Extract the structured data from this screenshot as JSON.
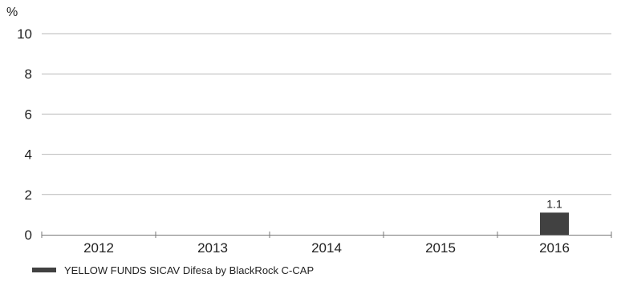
{
  "colors": {
    "bar": "#414141",
    "grid": "#b9b9b9",
    "axis": "#777777",
    "text": "#222222"
  },
  "chart_data": {
    "type": "bar",
    "title": "",
    "xlabel": "",
    "ylabel": "%",
    "categories": [
      "2012",
      "2013",
      "2014",
      "2015",
      "2016"
    ],
    "series": [
      {
        "name": "YELLOW FUNDS SICAV Difesa by BlackRock C-CAP",
        "values": [
          null,
          null,
          null,
          null,
          1.1
        ],
        "data_labels": [
          "",
          "",
          "",
          "",
          "1.1"
        ]
      }
    ],
    "ylim": [
      0,
      10
    ],
    "yticks": [
      0,
      2,
      4,
      6,
      8,
      10
    ],
    "grid": true,
    "legend": "bottom-left"
  }
}
